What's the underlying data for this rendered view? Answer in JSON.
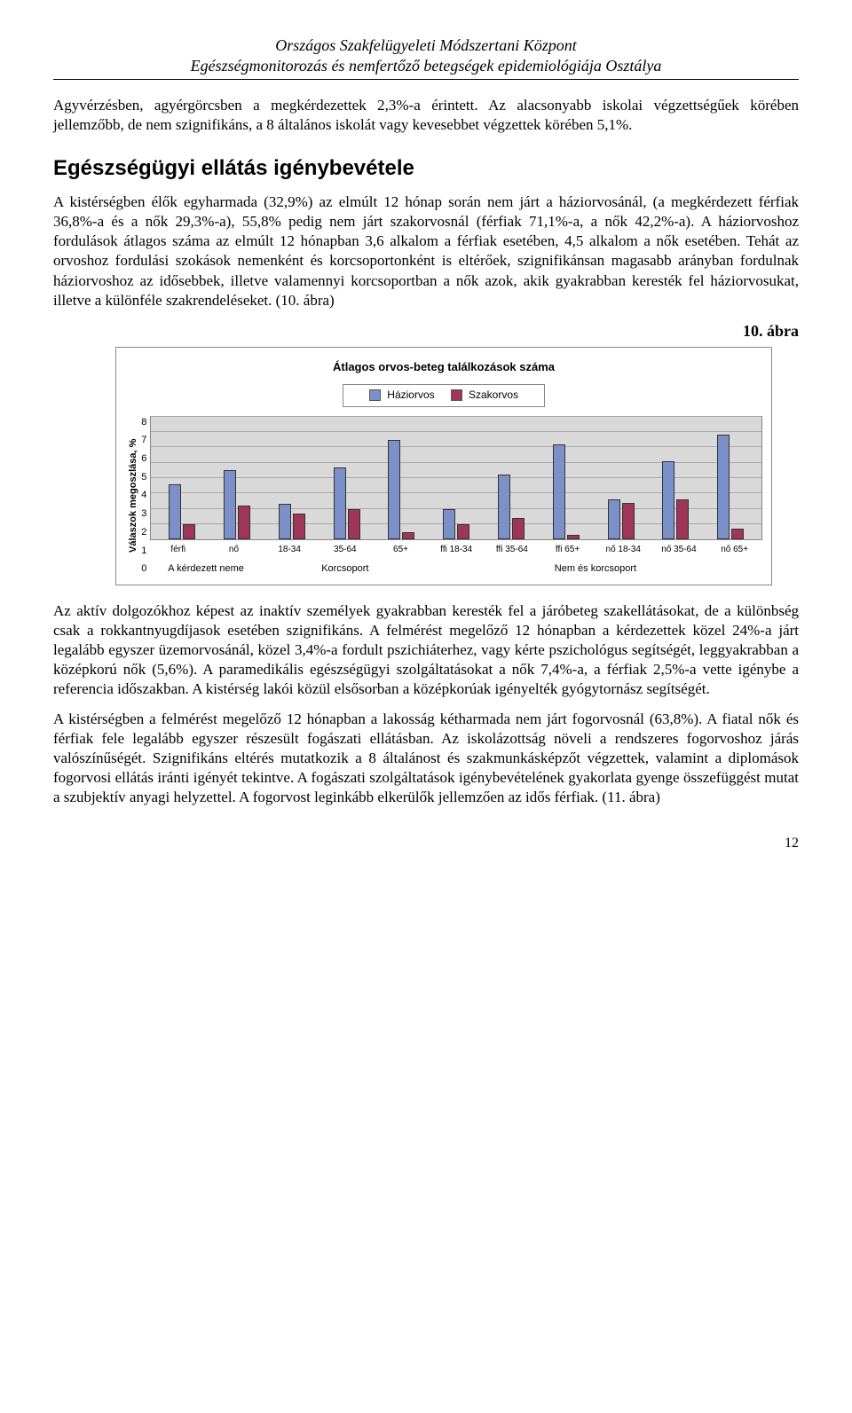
{
  "header": {
    "line1": "Országos Szakfelügyeleti Módszertani Központ",
    "line2": "Egészségmonitorozás és nemfertőző betegségek epidemiológiája Osztálya"
  },
  "para1": "Agyvérzésben, agyérgörcsben a megkérdezettek 2,3%-a érintett. Az alacsonyabb iskolai végzettségűek körében jellemzőbb, de nem szignifikáns, a 8 általános iskolát vagy kevesebbet végzettek körében 5,1%.",
  "section_title": "Egészségügyi ellátás igénybevétele",
  "para2": "A kistérségben élők egyharmada (32,9%) az elmúlt 12 hónap során nem járt a háziorvosánál, (a megkérdezett férfiak 36,8%-a és a nők 29,3%-a), 55,8% pedig nem járt szakorvosnál (férfiak 71,1%-a, a nők 42,2%-a). A háziorvoshoz fordulások átlagos száma az elmúlt 12 hónapban 3,6 alkalom a férfiak esetében, 4,5 alkalom a nők esetében. Tehát az orvoshoz fordulási szokások nemenként és korcsoportonként is eltérőek, szignifikánsan magasabb arányban fordulnak háziorvoshoz az idősebbek, illetve valamennyi korcsoportban a nők azok, akik gyakrabban keresték fel háziorvosukat, illetve a különféle szakrendeléseket. (10. ábra)",
  "fig_label": "10. ábra",
  "chart": {
    "type": "bar",
    "title": "Átlagos orvos-beteg találkozások száma",
    "legend": [
      {
        "label": "Háziorvos",
        "color": "#7b90c8"
      },
      {
        "label": "Szakorvos",
        "color": "#a0355a"
      }
    ],
    "ylabel": "Válaszok megoszlása, %",
    "ymax": 8,
    "yticks": [
      8,
      7,
      6,
      5,
      4,
      3,
      2,
      1,
      0
    ],
    "background_color": "#d9d9d9",
    "grid_color": "#aaaaaa",
    "categories": [
      "férfi",
      "nő",
      "18-34",
      "35-64",
      "65+",
      "ffi 18-34",
      "ffi 35-64",
      "ffi 65+",
      "nő 18-34",
      "nő 35-64",
      "nő 65+"
    ],
    "series1": [
      3.6,
      4.5,
      2.3,
      4.7,
      6.5,
      2.0,
      4.2,
      6.2,
      2.6,
      5.1,
      6.8
    ],
    "series2": [
      1.0,
      2.2,
      1.7,
      2.0,
      0.5,
      1.0,
      1.4,
      0.3,
      2.4,
      2.6,
      0.7
    ],
    "group_labels": [
      {
        "label": "A kérdezett neme",
        "span": 2
      },
      {
        "label": "Korcsoport",
        "span": 3
      },
      {
        "label": "Nem és korcsoport",
        "span": 6
      }
    ]
  },
  "para3": "Az aktív dolgozókhoz képest az inaktív személyek gyakrabban keresték fel a járóbeteg szakellátásokat, de a különbség csak a rokkantnyugdíjasok esetében szignifikáns. A felmérést megelőző 12 hónapban a kérdezettek közel 24%-a járt legalább egyszer üzemorvosánál, közel 3,4%-a fordult pszichiáterhez, vagy kérte pszichológus segítségét, leggyakrabban a középkorú nők (5,6%). A paramedikális egészségügyi szolgáltatásokat a nők 7,4%-a, a férfiak 2,5%-a vette igénybe a referencia időszakban. A kistérség lakói közül elsősorban a középkorúak igényelték gyógytornász segítségét.",
  "para4": "A kistérségben a felmérést megelőző 12 hónapban a lakosság kétharmada nem járt fogorvosnál (63,8%). A fiatal nők és férfiak fele legalább egyszer részesült fogászati ellátásban. Az iskolázottság növeli a rendszeres fogorvoshoz járás valószínűségét. Szignifikáns eltérés mutatkozik a 8 általánost és szakmunkásképzőt végzettek, valamint a diplomások fogorvosi ellátás iránti igényét tekintve. A fogászati szolgáltatások igénybevételének gyakorlata gyenge összefüggést mutat a szubjektív anyagi helyzettel. A fogorvost leginkább elkerülők jellemzően az idős férfiak. (11. ábra)",
  "page_number": "12"
}
